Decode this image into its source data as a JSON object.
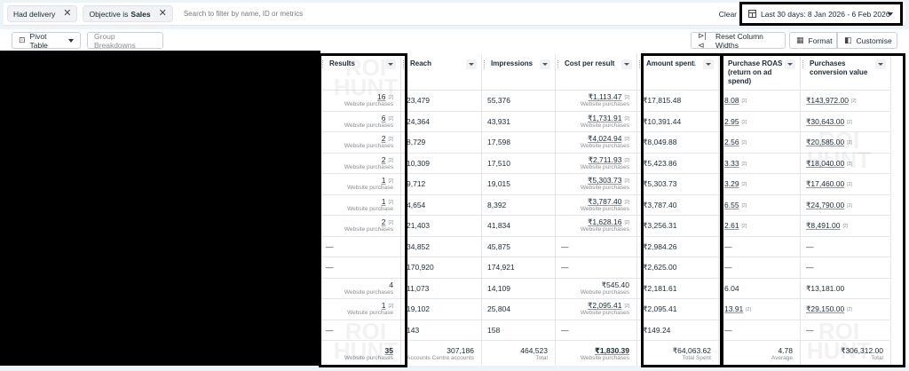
{
  "filters": {
    "chips": [
      {
        "label": "Had delivery",
        "bold": ""
      },
      {
        "label": "Objective is",
        "bold": "Sales"
      }
    ],
    "search_placeholder": "Search to filter by name, ID or metrics",
    "clear_label": "Clear",
    "date_range": "Last 30 days: 8 Jan 2026 - 6 Feb 2026"
  },
  "toolbar": {
    "pivot_table": "Pivot Table",
    "group_breakdowns": "Group Breakdowns",
    "reset_column_widths": "Reset Column Widths",
    "format": "Format",
    "customise": "Customise"
  },
  "table": {
    "columns": [
      {
        "key": "results",
        "label": "Results"
      },
      {
        "key": "reach",
        "label": "Reach"
      },
      {
        "key": "impressions",
        "label": "Impressions"
      },
      {
        "key": "cost_per_result",
        "label": "Cost per result"
      },
      {
        "key": "amount_spent",
        "label": "Amount spent",
        "sorted": "↓"
      },
      {
        "key": "purchase_roas",
        "label": "Purchase ROAS (return on ad spend)"
      },
      {
        "key": "purchases_conversion_value",
        "label": "Purchases conversion value"
      }
    ],
    "rows": [
      {
        "results": "16",
        "results_sub": "Website purchases",
        "reach": "23,479",
        "impressions": "55,376",
        "cost_per_result": "₹1,113.47",
        "cpr_sub": "Website purchases",
        "amount_spent": "₹17,815.48",
        "roas": "8.08",
        "conv_value": "₹143,972.00"
      },
      {
        "results": "6",
        "results_sub": "Website purchases",
        "reach": "24,364",
        "impressions": "43,931",
        "cost_per_result": "₹1,731.91",
        "cpr_sub": "Website purchases",
        "amount_spent": "₹10,391.44",
        "roas": "2.95",
        "conv_value": "₹30,643.00"
      },
      {
        "results": "2",
        "results_sub": "Website purchases",
        "reach": "8,729",
        "impressions": "17,598",
        "cost_per_result": "₹4,024.94",
        "cpr_sub": "Website purchases",
        "amount_spent": "₹8,049.88",
        "roas": "2.56",
        "conv_value": "₹20,585.00"
      },
      {
        "results": "2",
        "results_sub": "Website purchases",
        "reach": "10,309",
        "impressions": "17,510",
        "cost_per_result": "₹2,711.93",
        "cpr_sub": "Website purchases",
        "amount_spent": "₹5,423.86",
        "roas": "3.33",
        "conv_value": "₹18,040.00"
      },
      {
        "results": "1",
        "results_sub": "Website purchase",
        "reach": "9,712",
        "impressions": "19,015",
        "cost_per_result": "₹5,303.73",
        "cpr_sub": "Website purchases",
        "amount_spent": "₹5,303.73",
        "roas": "3.29",
        "conv_value": "₹17,460.00"
      },
      {
        "results": "1",
        "results_sub": "Website purchase",
        "reach": "4,654",
        "impressions": "8,392",
        "cost_per_result": "₹3,787.40",
        "cpr_sub": "Website purchases",
        "amount_spent": "₹3,787.40",
        "roas": "6.55",
        "conv_value": "₹24,790.00"
      },
      {
        "results": "2",
        "results_sub": "Website purchases",
        "reach": "21,403",
        "impressions": "41,834",
        "cost_per_result": "₹1,628.16",
        "cpr_sub": "Website purchases",
        "amount_spent": "₹3,256.31",
        "roas": "2.61",
        "conv_value": "₹8,491.00"
      },
      {
        "results": "—",
        "results_sub": "",
        "reach": "34,852",
        "impressions": "45,875",
        "cost_per_result": "—",
        "cpr_sub": "",
        "amount_spent": "₹2,984.26",
        "roas": "—",
        "conv_value": "—"
      },
      {
        "results": "—",
        "results_sub": "",
        "reach": "170,920",
        "impressions": "174,921",
        "cost_per_result": "—",
        "cpr_sub": "",
        "amount_spent": "₹2,625.00",
        "roas": "—",
        "conv_value": "—"
      },
      {
        "results": "4",
        "results_sub": "Website purchases",
        "reach": "11,073",
        "impressions": "14,109",
        "cost_per_result": "₹545.40",
        "cpr_sub": "Website purchases",
        "amount_spent": "₹2,181.61",
        "roas": "6.04",
        "conv_value": "₹13,181.00"
      },
      {
        "results": "1",
        "results_sub": "Website purchase",
        "reach": "19,102",
        "impressions": "25,804",
        "cost_per_result": "₹2,095.41",
        "cpr_sub": "Website purchases",
        "amount_spent": "₹2,095.41",
        "roas": "13.91",
        "conv_value": "₹29,150.00"
      },
      {
        "results": "—",
        "results_sub": "",
        "reach": "143",
        "impressions": "158",
        "cost_per_result": "—",
        "cpr_sub": "",
        "amount_spent": "₹149.24",
        "roas": "—",
        "conv_value": "—"
      }
    ],
    "footnote": "[2]",
    "totals": {
      "results": "35",
      "results_sub": "Website purchases",
      "reach": "307,186",
      "reach_sub": "Accounts Centre accounts",
      "impressions": "464,523",
      "impressions_sub": "Total",
      "cost_per_result": "₹1,830.39",
      "cpr_sub": "Website purchases",
      "amount_spent": "₹64,063.62",
      "amount_sub": "Total Spent",
      "roas": "4.78",
      "roas_sub": "Average",
      "conv_value": "₹306,312.00",
      "conv_sub": "Total"
    }
  },
  "watermark": {
    "line1": "ROI",
    "line2": "HUNT"
  }
}
